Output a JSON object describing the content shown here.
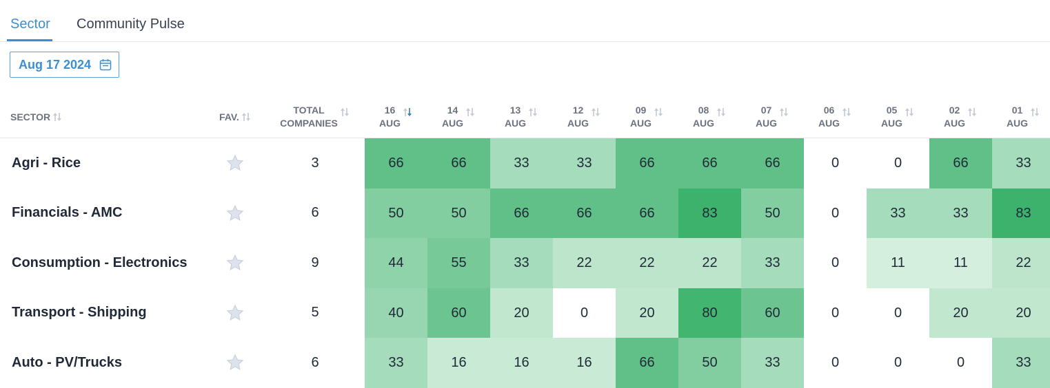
{
  "tabs": [
    {
      "label": "Sector",
      "active": true
    },
    {
      "label": "Community Pulse",
      "active": false
    }
  ],
  "date_picker": {
    "value": "Aug 17 2024",
    "icon": "calendar-icon"
  },
  "header": {
    "sector": "SECTOR",
    "fav": "FAV.",
    "total": [
      "TOTAL",
      "COMPANIES"
    ],
    "dates": [
      {
        "day": "16",
        "month": "AUG",
        "sorted": true
      },
      {
        "day": "14",
        "month": "AUG"
      },
      {
        "day": "13",
        "month": "AUG"
      },
      {
        "day": "12",
        "month": "AUG"
      },
      {
        "day": "09",
        "month": "AUG"
      },
      {
        "day": "08",
        "month": "AUG"
      },
      {
        "day": "07",
        "month": "AUG"
      },
      {
        "day": "06",
        "month": "AUG"
      },
      {
        "day": "05",
        "month": "AUG"
      },
      {
        "day": "02",
        "month": "AUG"
      },
      {
        "day": "01",
        "month": "AUG"
      }
    ]
  },
  "colors": {
    "accent": "#3b8fd1",
    "heat_0": "#ffffff",
    "heat_low": "#d8f0e1",
    "heat_mid": "#9fdcb7",
    "heat_high": "#62c48a",
    "heat_max": "#3cb26c"
  },
  "rows": [
    {
      "sector": "Agri - Rice",
      "total": "3",
      "values": [
        66,
        66,
        33,
        33,
        66,
        66,
        66,
        0,
        0,
        66,
        33
      ]
    },
    {
      "sector": "Financials - AMC",
      "total": "6",
      "values": [
        50,
        50,
        66,
        66,
        66,
        83,
        50,
        0,
        33,
        33,
        83
      ]
    },
    {
      "sector": "Consumption - Electronics",
      "total": "9",
      "values": [
        44,
        55,
        33,
        22,
        22,
        22,
        33,
        0,
        11,
        11,
        22
      ]
    },
    {
      "sector": "Transport - Shipping",
      "total": "5",
      "values": [
        40,
        60,
        20,
        0,
        20,
        80,
        60,
        0,
        0,
        20,
        20
      ]
    },
    {
      "sector": "Auto - PV/Trucks",
      "total": "6",
      "values": [
        33,
        16,
        16,
        16,
        66,
        50,
        33,
        0,
        0,
        0,
        33
      ]
    }
  ]
}
